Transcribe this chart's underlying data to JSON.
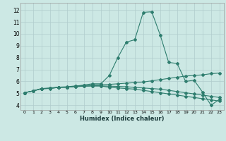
{
  "xlabel": "Humidex (Indice chaleur)",
  "xlim": [
    -0.5,
    23.5
  ],
  "ylim": [
    3.6,
    12.6
  ],
  "xticks": [
    0,
    1,
    2,
    3,
    4,
    5,
    6,
    7,
    8,
    9,
    10,
    11,
    12,
    13,
    14,
    15,
    16,
    17,
    18,
    19,
    20,
    21,
    22,
    23
  ],
  "yticks": [
    4,
    5,
    6,
    7,
    8,
    9,
    10,
    11,
    12
  ],
  "line_color": "#2e7d6e",
  "bg_color": "#cce8e4",
  "grid_color": "#b0cccc",
  "line1_y": [
    5.05,
    5.2,
    5.4,
    5.4,
    5.5,
    5.5,
    5.6,
    5.7,
    5.8,
    5.8,
    6.5,
    8.0,
    9.3,
    9.5,
    11.8,
    11.85,
    9.9,
    7.6,
    7.5,
    6.0,
    6.1,
    5.1,
    4.0,
    4.5
  ],
  "line2_y": [
    5.05,
    5.2,
    5.4,
    5.45,
    5.52,
    5.55,
    5.62,
    5.65,
    5.7,
    5.72,
    5.75,
    5.8,
    5.85,
    5.9,
    5.95,
    6.05,
    6.15,
    6.25,
    6.35,
    6.45,
    6.5,
    6.55,
    6.65,
    6.7
  ],
  "line3_y": [
    5.05,
    5.2,
    5.38,
    5.42,
    5.5,
    5.52,
    5.56,
    5.6,
    5.62,
    5.62,
    5.6,
    5.58,
    5.55,
    5.5,
    5.45,
    5.4,
    5.35,
    5.25,
    5.15,
    5.05,
    4.95,
    4.85,
    4.75,
    4.65
  ],
  "line4_y": [
    5.05,
    5.2,
    5.38,
    5.42,
    5.5,
    5.52,
    5.56,
    5.6,
    5.62,
    5.62,
    5.5,
    5.45,
    5.4,
    5.35,
    5.25,
    5.15,
    5.05,
    4.95,
    4.85,
    4.75,
    4.65,
    4.55,
    4.45,
    4.35
  ]
}
